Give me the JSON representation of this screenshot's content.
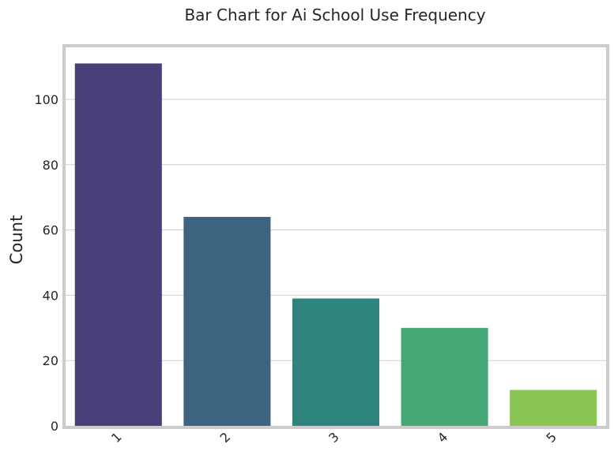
{
  "chart_data": {
    "type": "bar",
    "title": "Bar Chart for Ai School Use Frequency",
    "xlabel": "",
    "ylabel": "Count",
    "categories": [
      "1",
      "2",
      "3",
      "4",
      "5"
    ],
    "values": [
      111,
      64,
      39,
      30,
      11
    ],
    "colors": [
      "#4a3f78",
      "#3d6581",
      "#2e837c",
      "#45a776",
      "#8bc653"
    ],
    "ylim": [
      0,
      116
    ],
    "yticks": [
      0,
      20,
      40,
      60,
      80,
      100
    ],
    "grid": true,
    "x_tick_rotation": "45"
  }
}
